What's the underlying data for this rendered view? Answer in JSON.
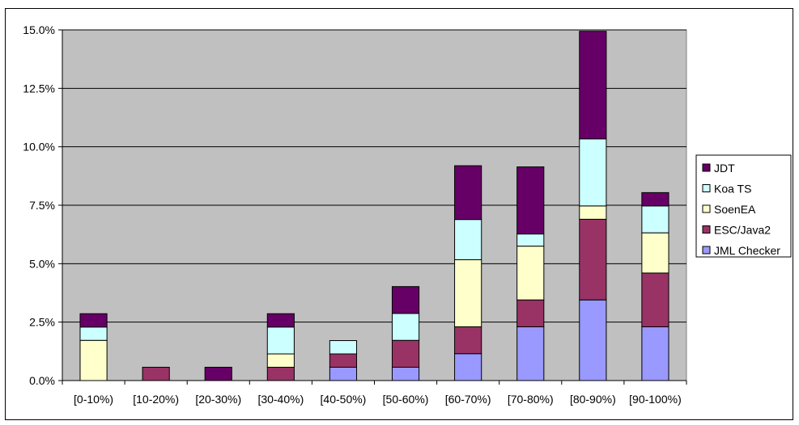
{
  "chart_data": {
    "type": "bar",
    "stacked": true,
    "categories": [
      "[0-10%)",
      "[10-20%)",
      "[20-30%)",
      "[30-40%)",
      "[40-50%)",
      "[50-60%)",
      "[60-70%)",
      "[70-80%)",
      "[80-90%)",
      "[90-100%)"
    ],
    "series": [
      {
        "name": "JML Checker",
        "color": "#9999FF",
        "values": [
          0,
          0,
          0,
          0,
          0.57,
          0.57,
          1.15,
          2.3,
          3.45,
          2.3
        ]
      },
      {
        "name": "ESC/Java2",
        "color": "#993366",
        "values": [
          0,
          0.57,
          0,
          0.57,
          0.57,
          1.15,
          1.15,
          1.15,
          3.45,
          2.3
        ]
      },
      {
        "name": "SoenEA",
        "color": "#FFFFCC",
        "values": [
          1.72,
          0,
          0,
          0.57,
          0,
          0,
          2.87,
          2.3,
          0.57,
          1.72
        ]
      },
      {
        "name": "Koa TS",
        "color": "#CCFFFF",
        "values": [
          0.57,
          0,
          0,
          1.15,
          0.57,
          1.15,
          1.72,
          0.52,
          2.87,
          1.15
        ]
      },
      {
        "name": "JDT",
        "color": "#660066",
        "values": [
          0.57,
          0,
          0.57,
          0.57,
          0,
          1.15,
          2.3,
          2.87,
          4.6,
          0.57
        ]
      }
    ],
    "y_ticks": [
      "0.0%",
      "2.5%",
      "5.0%",
      "7.5%",
      "10.0%",
      "12.5%",
      "15.0%"
    ],
    "ylim": [
      0,
      15
    ],
    "legend_order": [
      "JDT",
      "Koa TS",
      "SoenEA",
      "ESC/Java2",
      "JML Checker"
    ],
    "legend_position": "right",
    "plot_background": "#C0C0C0",
    "grid": true,
    "title": "",
    "xlabel": "",
    "ylabel": ""
  }
}
